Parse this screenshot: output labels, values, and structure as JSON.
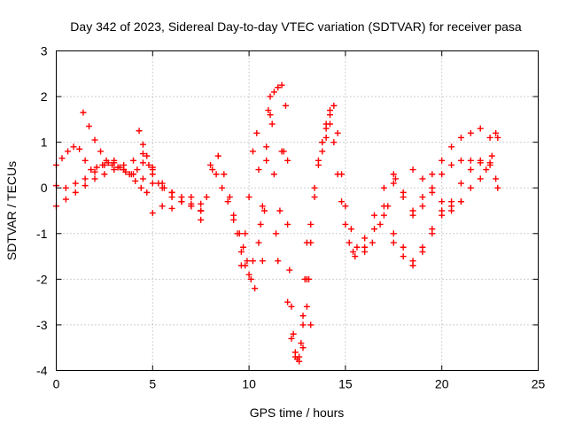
{
  "chart_data": {
    "type": "scatter",
    "title": "Day 342 of 2023, Sidereal Day-to-day VTEC variation (SDTVAR) for receiver pasa",
    "xlabel": "GPS time / hours",
    "ylabel": "SDTVAR / TECUs",
    "xlim": [
      0,
      25
    ],
    "ylim": [
      -4,
      3
    ],
    "xticks": [
      "0",
      "5",
      "10",
      "15",
      "20",
      "25"
    ],
    "yticks": [
      "-4",
      "-3",
      "-2",
      "-1",
      "0",
      "1",
      "2",
      "3"
    ],
    "grid": true,
    "marker": "plus",
    "color": "#ff0000",
    "series": [
      {
        "x": [
          0.0,
          0.3,
          0.6,
          0.9,
          1.2,
          1.5,
          1.8,
          2.1,
          2.4,
          2.7,
          3.0,
          3.3,
          3.6,
          3.9,
          4.2,
          4.5,
          4.8,
          5.0
        ],
        "values": [
          0.5,
          0.65,
          0.8,
          0.9,
          0.85,
          0.6,
          0.4,
          0.45,
          0.5,
          0.55,
          0.6,
          0.45,
          0.35,
          0.3,
          0.4,
          0.55,
          0.5,
          0.45
        ]
      },
      {
        "x": [
          0.0,
          0.5,
          1.0,
          1.5,
          2.0,
          2.5,
          3.0,
          3.5,
          4.0,
          4.5,
          5.0,
          5.5,
          6.0,
          6.5,
          7.0,
          7.5
        ],
        "values": [
          0.05,
          0.0,
          0.1,
          0.2,
          0.35,
          0.5,
          0.55,
          0.4,
          0.3,
          0.2,
          0.1,
          0.0,
          -0.1,
          -0.2,
          -0.35,
          -0.5
        ]
      },
      {
        "x": [
          0.0,
          0.5,
          1.0,
          1.5,
          2.0,
          2.5,
          3.0,
          3.5,
          4.0,
          4.5,
          5.0,
          5.5,
          6.0,
          6.5,
          7.0,
          7.5
        ],
        "values": [
          -0.4,
          -0.25,
          -0.1,
          0.05,
          0.2,
          0.3,
          0.4,
          0.5,
          0.6,
          0.75,
          0.4,
          0.1,
          -0.1,
          -0.3,
          -0.4,
          -0.5
        ]
      },
      {
        "x": [
          1.4,
          1.7,
          2.0,
          2.3,
          2.6,
          2.9,
          3.2,
          3.5,
          3.8,
          4.1,
          4.4,
          4.7
        ],
        "values": [
          1.65,
          1.35,
          1.05,
          0.8,
          0.6,
          0.5,
          0.45,
          0.4,
          0.3,
          0.15,
          0.0,
          -0.1
        ]
      },
      {
        "x": [
          4.3,
          4.5,
          4.7,
          5.0,
          5.3,
          5.6,
          6.0,
          6.5,
          7.0,
          7.5
        ],
        "values": [
          1.25,
          0.95,
          0.7,
          0.3,
          0.1,
          0.0,
          -0.2,
          -0.3,
          -0.4,
          -0.5
        ]
      },
      {
        "x": [
          5.0,
          5.5,
          6.0,
          6.5,
          7.0,
          7.5
        ],
        "values": [
          -0.55,
          -0.4,
          -0.45,
          -0.3,
          -0.2,
          -0.35
        ]
      },
      {
        "x": [
          7.5,
          7.8,
          8.1,
          8.4,
          8.7,
          9.0,
          9.2,
          9.4,
          9.6,
          9.8,
          10.0,
          10.2
        ],
        "values": [
          -0.7,
          -0.2,
          0.4,
          0.7,
          0.3,
          -0.2,
          -0.6,
          -1.0,
          -1.4,
          -1.7,
          -1.9,
          -1.6
        ]
      },
      {
        "x": [
          8.0,
          8.3,
          8.6,
          8.9,
          9.2,
          9.5,
          9.7,
          9.9,
          10.1,
          10.3
        ],
        "values": [
          0.5,
          0.3,
          0.0,
          -0.3,
          -0.7,
          -1.0,
          -1.3,
          -1.6,
          -2.0,
          -2.2
        ]
      },
      {
        "x": [
          9.6,
          9.8,
          10.0,
          10.2,
          10.4,
          10.5,
          10.6,
          10.7,
          10.8,
          10.9,
          11.0,
          11.1,
          11.2,
          11.3,
          11.4,
          11.5,
          11.6,
          11.7
        ],
        "values": [
          -1.7,
          -1.0,
          -0.2,
          0.8,
          1.2,
          0.4,
          -0.8,
          -1.6,
          -0.5,
          0.9,
          1.7,
          2.0,
          1.4,
          0.3,
          -1.0,
          -1.6,
          -0.5,
          0.8
        ]
      },
      {
        "x": [
          10.5,
          10.7,
          10.9,
          11.1,
          11.3,
          11.5,
          11.7,
          11.9,
          12.0
        ],
        "values": [
          -1.2,
          -0.4,
          0.6,
          1.6,
          2.1,
          2.2,
          2.25,
          1.8,
          0.6
        ]
      },
      {
        "x": [
          11.8,
          12.0,
          12.1,
          12.2,
          12.3,
          12.4,
          12.5,
          12.6,
          12.7,
          12.8,
          12.9,
          13.0,
          13.1,
          13.2
        ],
        "values": [
          0.8,
          -0.8,
          -1.8,
          -2.6,
          -3.2,
          -3.6,
          -3.75,
          -3.7,
          -3.4,
          -2.8,
          -2.0,
          -1.2,
          -2.0,
          -3.0
        ]
      },
      {
        "x": [
          12.0,
          12.2,
          12.4,
          12.6,
          12.8,
          13.0,
          13.2,
          13.4,
          13.6,
          13.8,
          14.0,
          14.2
        ],
        "values": [
          -2.5,
          -3.3,
          -3.7,
          -3.8,
          -3.5,
          -2.6,
          -1.2,
          -0.2,
          0.5,
          1.0,
          1.4,
          1.7
        ]
      },
      {
        "x": [
          12.8,
          13.0,
          13.2,
          13.4,
          13.6,
          13.8,
          14.0,
          14.2,
          14.4,
          14.6,
          14.8,
          15.0,
          15.2,
          15.4
        ],
        "values": [
          -3.0,
          -2.0,
          -0.8,
          0.0,
          0.6,
          1.0,
          1.3,
          1.4,
          1.0,
          0.3,
          -0.3,
          -0.8,
          -1.2,
          -1.4
        ]
      },
      {
        "x": [
          13.8,
          14.0,
          14.2,
          14.4,
          14.6,
          14.8,
          15.0,
          15.3,
          15.6,
          16.0,
          16.4,
          16.8,
          17.2,
          17.6
        ],
        "values": [
          0.8,
          1.1,
          1.6,
          1.8,
          1.2,
          0.3,
          -0.4,
          -0.9,
          -1.3,
          -1.4,
          -1.2,
          -0.8,
          -0.4,
          0.2
        ]
      },
      {
        "x": [
          15.5,
          16.0,
          16.5,
          17.0,
          17.5,
          18.0,
          18.5,
          19.0,
          19.5,
          20.0,
          20.5,
          21.0,
          21.5,
          22.0,
          22.5,
          22.8
        ],
        "values": [
          -1.5,
          -1.1,
          -0.6,
          0.0,
          0.3,
          -0.1,
          -0.5,
          -0.2,
          0.3,
          0.6,
          0.9,
          1.1,
          1.2,
          1.3,
          1.1,
          1.2
        ]
      },
      {
        "x": [
          16.0,
          16.5,
          17.0,
          17.5,
          18.0,
          18.5,
          19.0,
          19.5,
          20.0,
          20.5,
          21.0,
          21.5,
          22.0,
          22.5,
          22.8
        ],
        "values": [
          -1.3,
          -0.9,
          -0.4,
          0.1,
          -0.2,
          -0.6,
          -0.4,
          0.0,
          0.3,
          0.5,
          0.6,
          0.6,
          0.55,
          0.5,
          0.2
        ]
      },
      {
        "x": [
          17.5,
          18.0,
          18.5,
          19.0,
          19.5,
          20.0,
          20.5,
          21.0,
          21.5,
          22.0,
          22.5,
          22.9
        ],
        "values": [
          -1.2,
          -1.5,
          -1.7,
          -1.4,
          -1.0,
          -0.6,
          -0.3,
          0.1,
          0.4,
          0.6,
          0.55,
          0.0
        ]
      },
      {
        "x": [
          17.0,
          17.5,
          18.0,
          18.5,
          19.0,
          19.5,
          20.0,
          20.5,
          21.0
        ],
        "values": [
          -0.6,
          -1.0,
          -1.3,
          -1.6,
          -1.3,
          -0.9,
          -0.5,
          -0.4,
          -0.3
        ]
      },
      {
        "x": [
          18.5,
          19.0,
          19.5,
          20.0,
          20.5,
          21.0,
          21.5,
          22.0,
          22.3,
          22.6,
          22.9
        ],
        "values": [
          0.4,
          0.2,
          -0.1,
          -0.3,
          -0.5,
          -0.3,
          0.0,
          0.2,
          0.4,
          0.7,
          1.1
        ]
      }
    ]
  }
}
